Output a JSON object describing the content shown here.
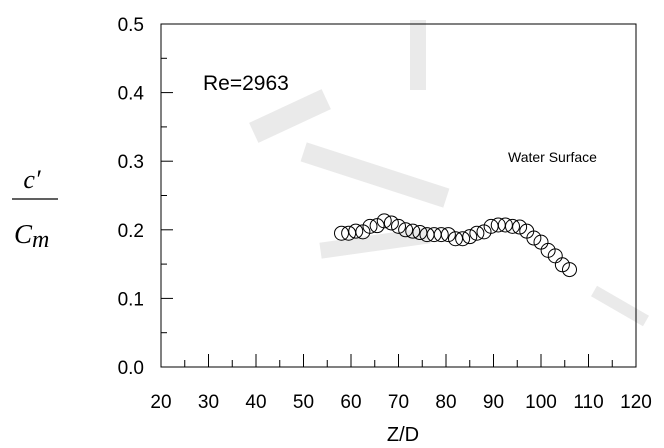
{
  "chart_data": {
    "type": "scatter",
    "title": "",
    "xlabel": "Z/D",
    "ylabel": {
      "numerator": "c′",
      "denominator_main": "C",
      "denominator_sub": "m"
    },
    "xlim": [
      20,
      120
    ],
    "ylim": [
      0.0,
      0.5
    ],
    "x_ticks": [
      20,
      30,
      40,
      50,
      60,
      70,
      80,
      90,
      100,
      110,
      120
    ],
    "x_tick_labels": [
      "20",
      "30",
      "40",
      "50",
      "60",
      "70",
      "80",
      "90",
      "100",
      "110",
      "120"
    ],
    "y_ticks": [
      0.0,
      0.1,
      0.2,
      0.3,
      0.4,
      0.5
    ],
    "y_tick_labels": [
      "0.0",
      "0.1",
      "0.2",
      "0.3",
      "0.4",
      "0.5"
    ],
    "grid": false,
    "marker": "open-circle",
    "annotations": [
      "Re=2963",
      "Water Surface"
    ],
    "series": [
      {
        "x": [
          58.0,
          59.5,
          61.0,
          62.5,
          64.0,
          65.5,
          67.0,
          68.5,
          70.0,
          71.5,
          73.0,
          74.5,
          76.0,
          77.5,
          79.0,
          80.5,
          82.0,
          83.5,
          85.0,
          86.5,
          88.0,
          89.5,
          91.0,
          92.5,
          94.0,
          95.5,
          97.0,
          98.5,
          100.0,
          101.5,
          103.0,
          104.5,
          106.0
        ],
        "y": [
          0.195,
          0.195,
          0.198,
          0.197,
          0.205,
          0.206,
          0.213,
          0.21,
          0.205,
          0.2,
          0.198,
          0.196,
          0.193,
          0.193,
          0.193,
          0.193,
          0.187,
          0.187,
          0.19,
          0.195,
          0.197,
          0.205,
          0.207,
          0.207,
          0.205,
          0.204,
          0.198,
          0.188,
          0.182,
          0.17,
          0.162,
          0.149,
          0.142
        ]
      }
    ]
  }
}
